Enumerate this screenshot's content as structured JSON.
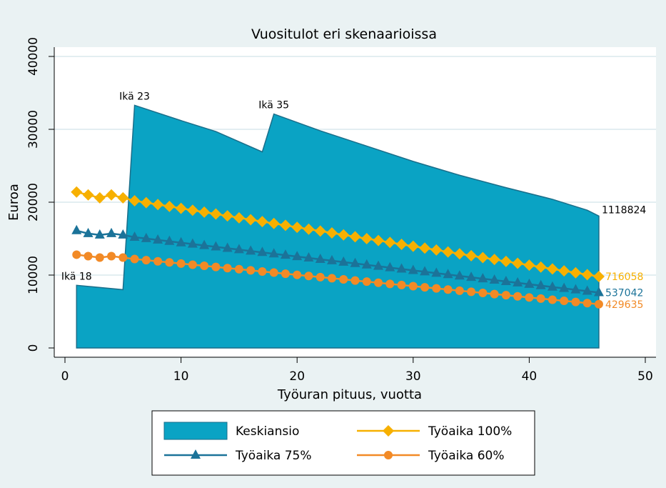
{
  "chart_data": {
    "type": "area_line",
    "title": "Vuositulot eri skenaarioissa",
    "x_label": "Työuran pituus, vuotta",
    "y_label": "Euroa",
    "xlim": [
      0,
      50
    ],
    "xticks": [
      0,
      10,
      20,
      30,
      40,
      50
    ],
    "ylim": [
      0,
      40000
    ],
    "yticks": [
      0,
      10000,
      20000,
      30000,
      40000
    ],
    "grid": true,
    "series": [
      {
        "name": "Keskiansio",
        "kind": "area",
        "color": "#0aa3c4",
        "end_label": "1118824",
        "x": [
          1,
          5,
          6,
          10,
          13,
          17,
          18,
          22,
          26,
          30,
          34,
          38,
          42,
          45,
          46
        ],
        "values": [
          8600,
          8000,
          33300,
          31200,
          29700,
          26900,
          32100,
          29800,
          27700,
          25600,
          23700,
          22000,
          20400,
          18900,
          18100
        ]
      },
      {
        "name": "Työaika 100%",
        "kind": "line",
        "marker": "diamond",
        "color": "#f7b000",
        "end_label": "716058",
        "x": [
          1,
          2,
          3,
          4,
          5,
          6,
          7,
          8,
          9,
          10,
          11,
          12,
          13,
          14,
          15,
          16,
          17,
          18,
          19,
          20,
          21,
          22,
          23,
          24,
          25,
          26,
          27,
          28,
          29,
          30,
          31,
          32,
          33,
          34,
          35,
          36,
          37,
          38,
          39,
          40,
          41,
          42,
          43,
          44,
          45,
          46
        ],
        "values": [
          21400,
          21000,
          20600,
          21000,
          20600,
          20200,
          19940,
          19680,
          19420,
          19160,
          18900,
          18640,
          18380,
          18120,
          17860,
          17600,
          17340,
          17080,
          16820,
          16560,
          16300,
          16040,
          15780,
          15520,
          15260,
          15000,
          14740,
          14480,
          14220,
          13960,
          13700,
          13440,
          13180,
          12920,
          12660,
          12400,
          12140,
          11880,
          11620,
          11360,
          11100,
          10840,
          10580,
          10320,
          10060,
          9800
        ]
      },
      {
        "name": "Työaika 75%",
        "kind": "line",
        "marker": "triangle",
        "color": "#1b7399",
        "end_label": "537042",
        "x": [
          1,
          2,
          3,
          4,
          5,
          6,
          7,
          8,
          9,
          10,
          11,
          12,
          13,
          14,
          15,
          16,
          17,
          18,
          19,
          20,
          21,
          22,
          23,
          24,
          25,
          26,
          27,
          28,
          29,
          30,
          31,
          32,
          33,
          34,
          35,
          36,
          37,
          38,
          39,
          40,
          41,
          42,
          43,
          44,
          45,
          46
        ],
        "values": [
          16100,
          15700,
          15500,
          15700,
          15500,
          15200,
          15010,
          14820,
          14630,
          14440,
          14250,
          14060,
          13870,
          13680,
          13490,
          13300,
          13110,
          12920,
          12730,
          12540,
          12350,
          12160,
          11970,
          11780,
          11590,
          11400,
          11210,
          11020,
          10830,
          10640,
          10450,
          10260,
          10070,
          9880,
          9690,
          9500,
          9310,
          9120,
          8930,
          8740,
          8550,
          8360,
          8170,
          7980,
          7790,
          7600
        ]
      },
      {
        "name": "Työaika 60%",
        "kind": "line",
        "marker": "circle",
        "color": "#f28a26",
        "end_label": "429635",
        "x": [
          1,
          2,
          3,
          4,
          5,
          6,
          7,
          8,
          9,
          10,
          11,
          12,
          13,
          14,
          15,
          16,
          17,
          18,
          19,
          20,
          21,
          22,
          23,
          24,
          25,
          26,
          27,
          28,
          29,
          30,
          31,
          32,
          33,
          34,
          35,
          36,
          37,
          38,
          39,
          40,
          41,
          42,
          43,
          44,
          45,
          46
        ],
        "values": [
          12800,
          12600,
          12400,
          12600,
          12400,
          12200,
          12045,
          11890,
          11735,
          11580,
          11425,
          11270,
          11115,
          10960,
          10805,
          10650,
          10495,
          10340,
          10185,
          10030,
          9875,
          9720,
          9565,
          9410,
          9255,
          9100,
          8945,
          8790,
          8635,
          8480,
          8325,
          8170,
          8015,
          7860,
          7705,
          7550,
          7395,
          7240,
          7085,
          6930,
          6775,
          6620,
          6465,
          6310,
          6155,
          6000
        ]
      }
    ],
    "annotations": [
      {
        "text": "Ikä 18",
        "x": 1,
        "y": 8600
      },
      {
        "text": "Ikä 23",
        "x": 6,
        "y": 33300
      },
      {
        "text": "Ikä 35",
        "x": 18,
        "y": 32100
      }
    ]
  }
}
